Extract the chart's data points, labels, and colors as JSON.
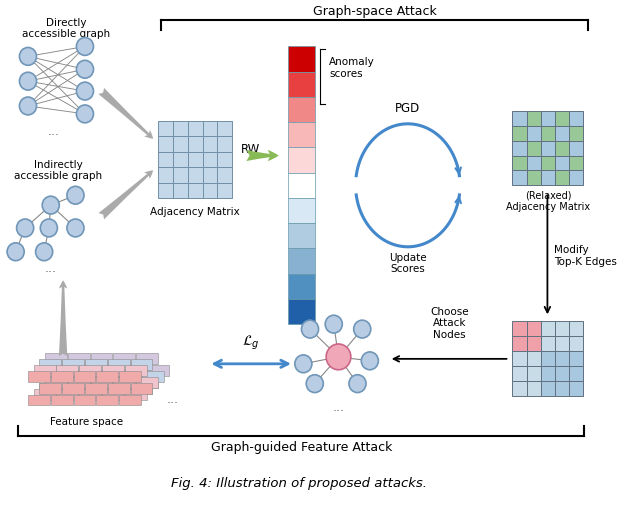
{
  "title": "Fig. 4: Illustration of proposed attacks.",
  "graph_space_label": "Graph-space Attack",
  "graph_guided_label": "Graph-guided Feature Attack",
  "figure_size": [
    6.26,
    5.1
  ],
  "dpi": 100,
  "bg_color": "#ffffff",
  "node_color": "#b8cce4",
  "node_ec": "#7096b8",
  "adj_cell_color": "#c5d8ea",
  "adj_border": "#7090a8",
  "score_colors_top": [
    "#cc0000",
    "#e84040",
    "#f08888",
    "#f8b8b8",
    "#fcd8d8"
  ],
  "score_colors_bot": [
    "#d8e8f4",
    "#b0cce0",
    "#88b0d0",
    "#5090c0",
    "#2060a8"
  ],
  "relaxed_green": "#98c898",
  "relaxed_blue": "#a8c8e0",
  "pink_cell": "#f0a0a8",
  "blue_cell": "#a8c8e0",
  "light_blue_cell": "#c8dce8",
  "arrow_blue": "#4488cc",
  "arrow_gray": "#aaaaaa",
  "green_arrow": "#88bb55",
  "directly_label": "Directly\naccessible graph",
  "indirectly_label": "Indirectly\naccessible graph",
  "adjacency_label": "Adjacency Matrix",
  "rw_label": "RW",
  "anomaly_label": "Anomaly\nscores",
  "pgd_label": "PGD",
  "update_label": "Update\nScores",
  "relaxed_label": "(Relaxed)\nAdjacency Matrix",
  "modify_label": "Modify\nTop-K Edges",
  "choose_label": "Choose\nAttack\nNodes",
  "lg_label": "$\\mathcal{L}_g$",
  "feature_label": "Feature space",
  "caption": "Fig. 4: Illustration of proposed attacks."
}
